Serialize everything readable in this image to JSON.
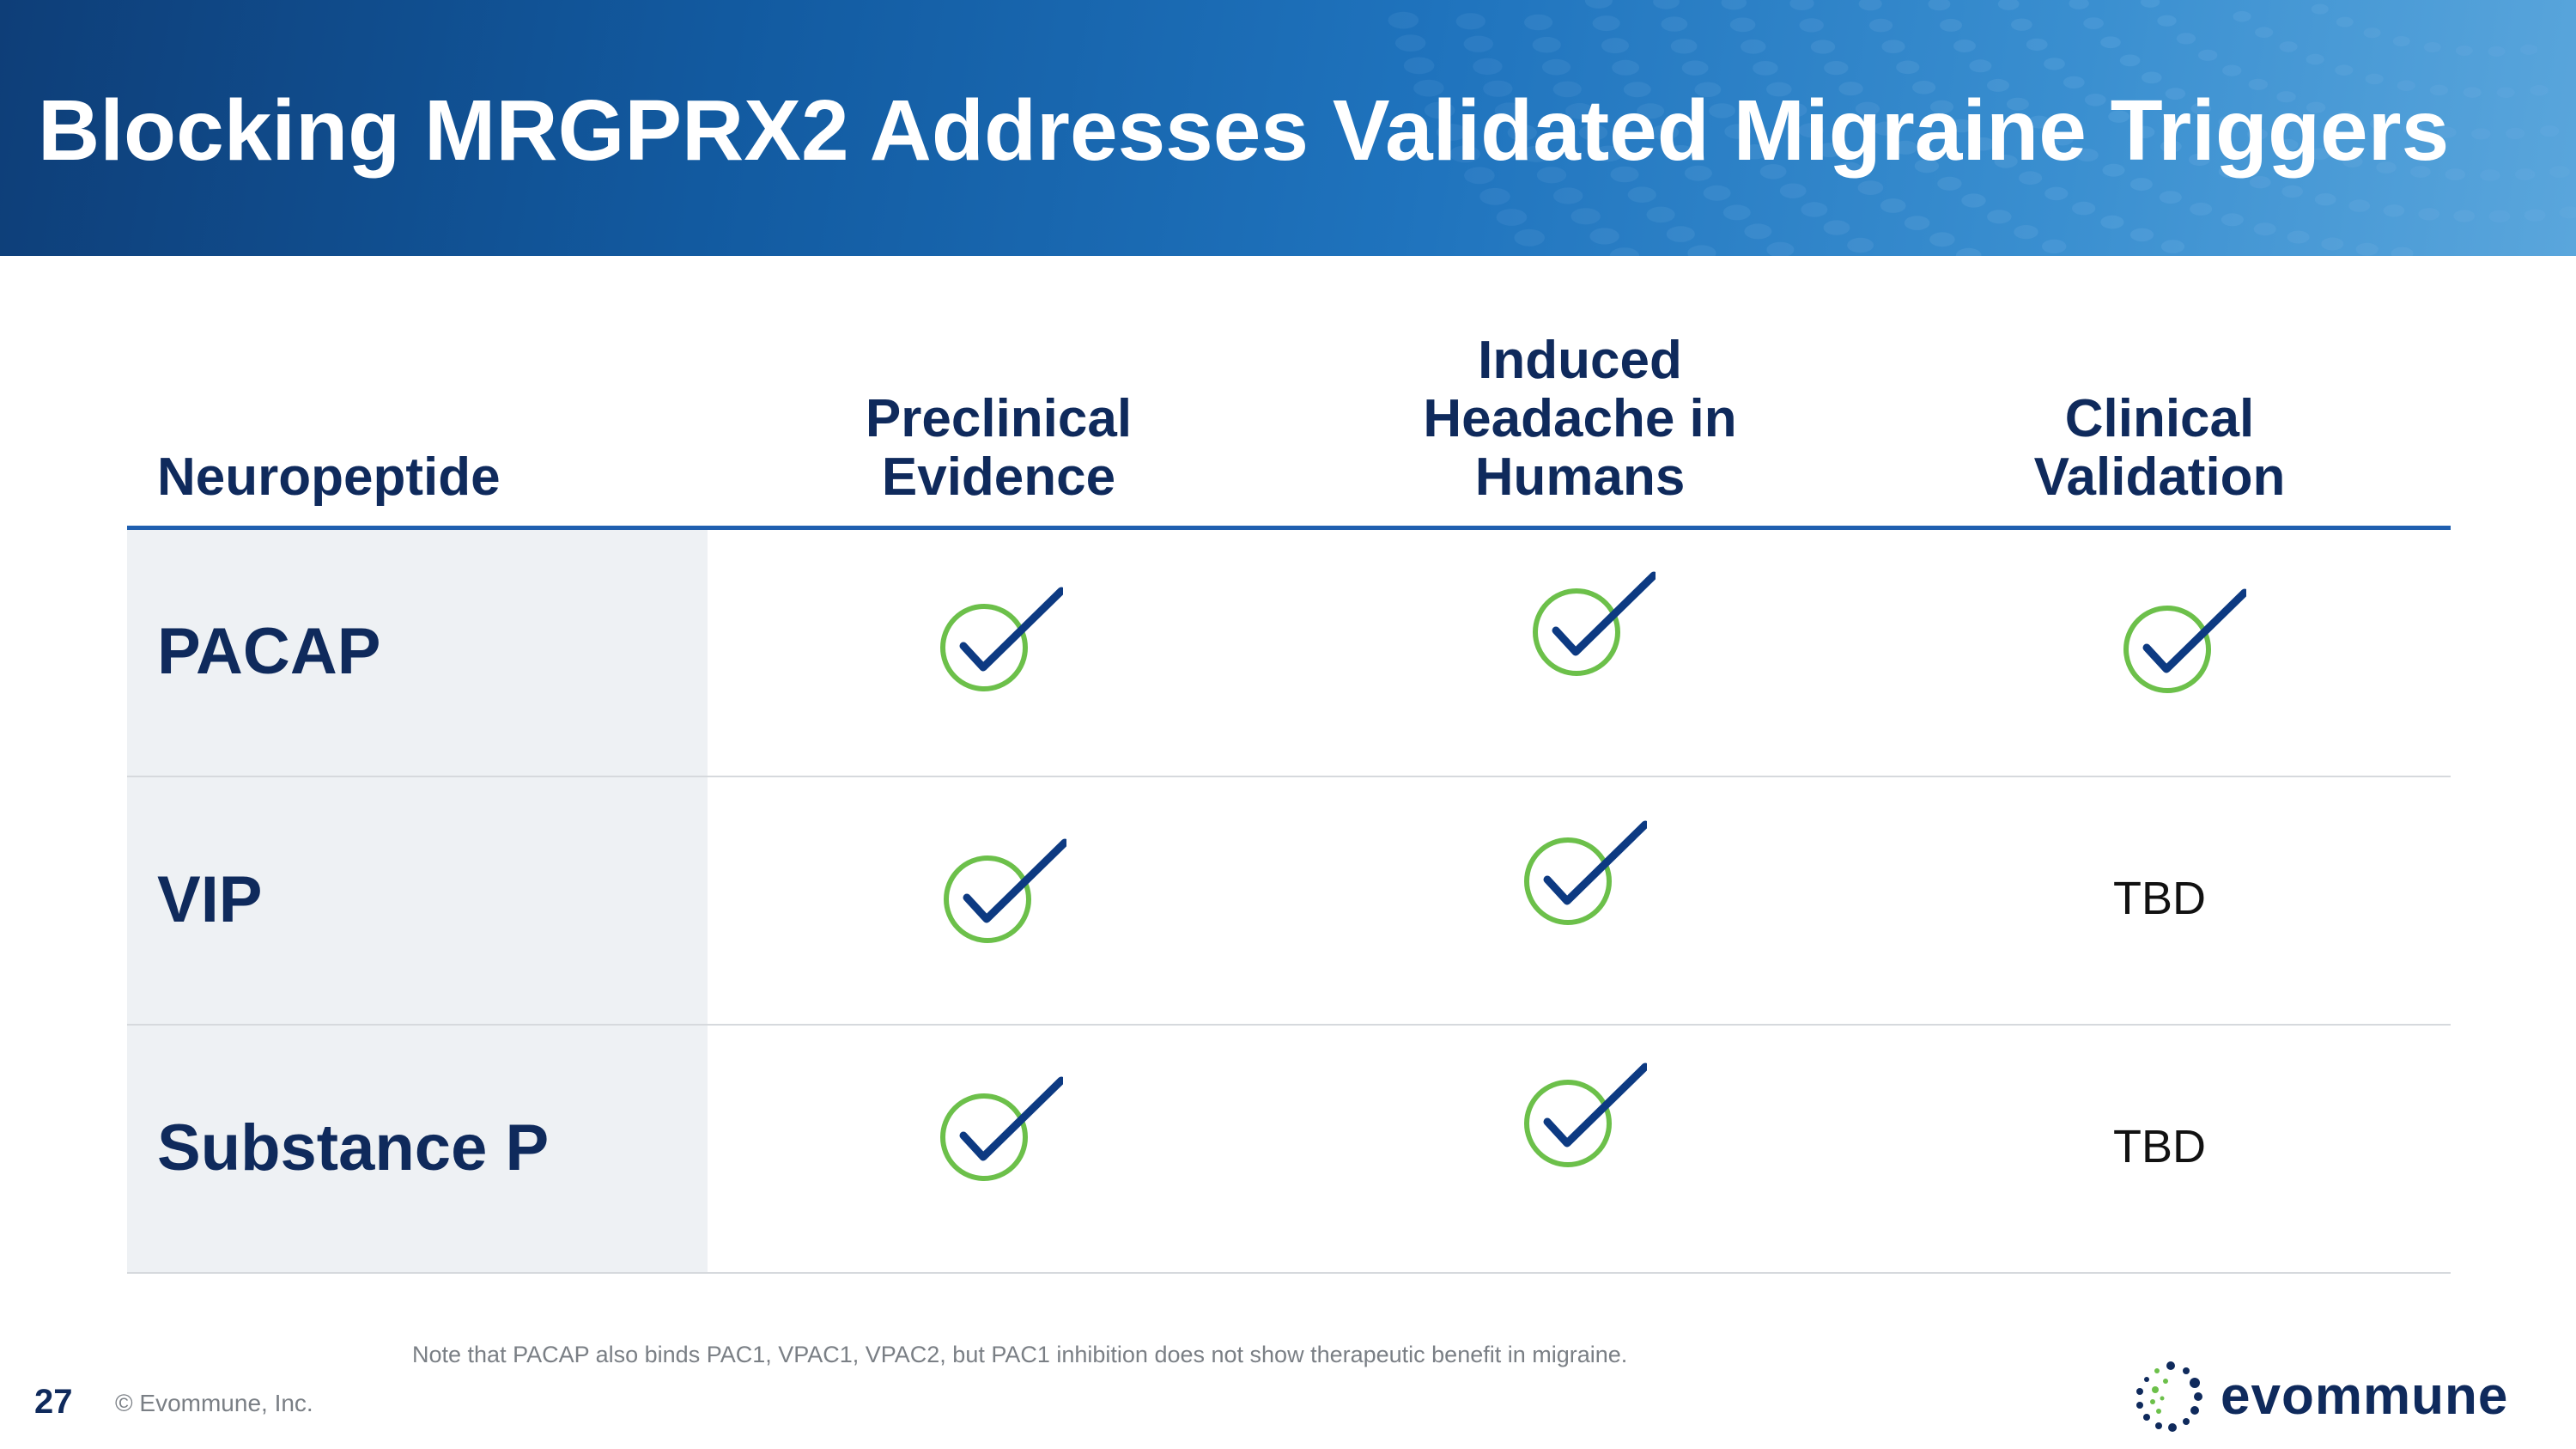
{
  "slide": {
    "title": "Blocking MRGPRX2 Addresses Validated Migraine Triggers",
    "page_number": "27",
    "copyright": "© Evommune, Inc.",
    "note": "Note that PACAP also binds PAC1, VPAC1, VPAC2, but PAC1 inhibition does not show therapeutic benefit in migraine.",
    "logo_text": "evommune"
  },
  "table": {
    "headers": {
      "neuropeptide": "Neuropeptide",
      "preclinical_line1": "Preclinical",
      "preclinical_line2": "Evidence",
      "induced_line1": "Induced",
      "induced_line2": "Headache in",
      "induced_line3": "Humans",
      "clinical_line1": "Clinical",
      "clinical_line2": "Validation"
    },
    "rows": [
      {
        "name": "PACAP",
        "preclinical": "check",
        "induced": "check",
        "clinical": "check"
      },
      {
        "name": "VIP",
        "preclinical": "check",
        "induced": "check",
        "clinical": "TBD"
      },
      {
        "name": "Substance P",
        "preclinical": "check",
        "induced": "check",
        "clinical": "TBD"
      }
    ]
  },
  "icons": {
    "check": "checkmark-circle-icon",
    "logo": "evommune-logo-icon"
  },
  "colors": {
    "navy": "#0f2a5c",
    "accent_blue": "#1f5fb0",
    "check_circle_green": "#6cc04a",
    "check_mark_navy": "#0d3a82"
  }
}
